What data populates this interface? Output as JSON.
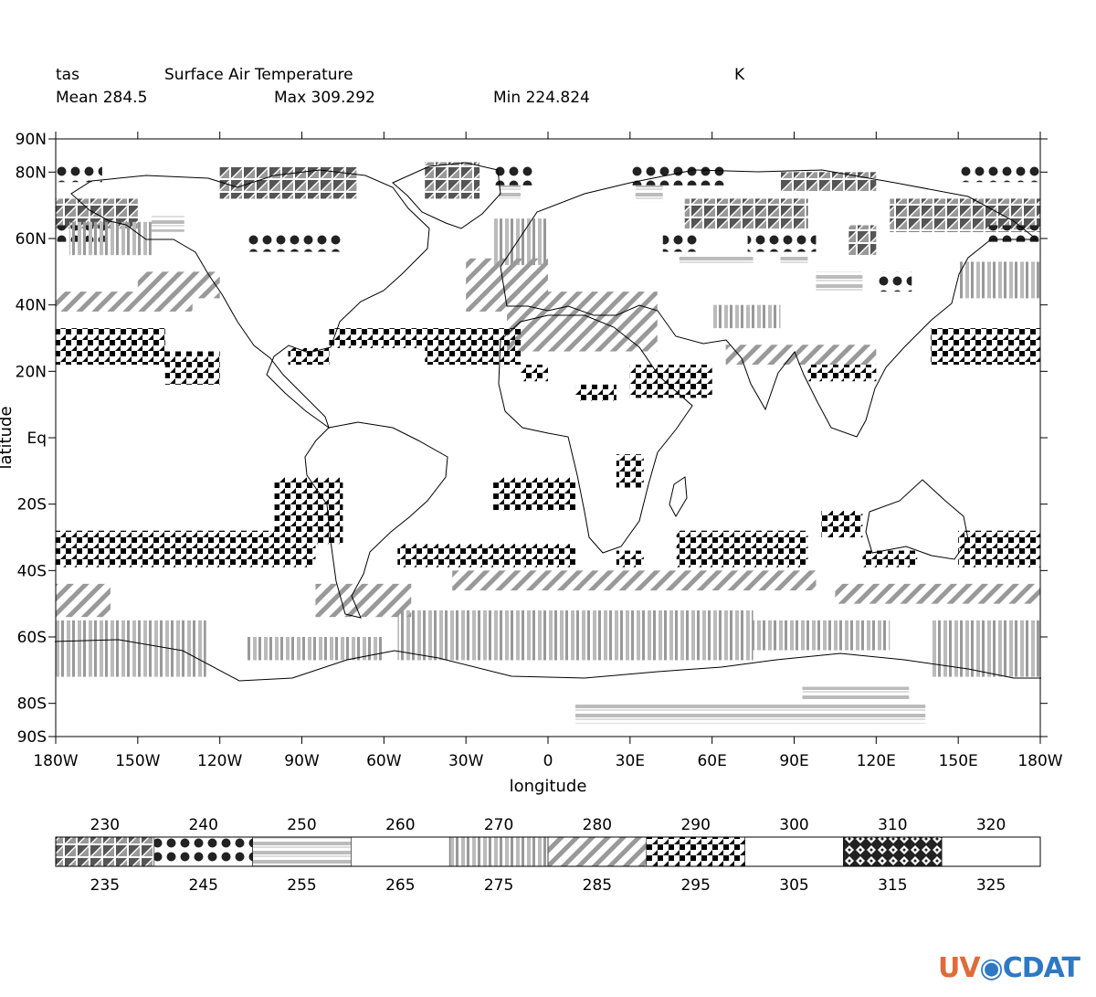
{
  "header": {
    "variable": "tas",
    "long_name": "Surface Air Temperature",
    "units": "K",
    "mean_label": "Mean 284.5",
    "max_label": "Max 309.292",
    "min_label": "Min 224.824"
  },
  "logo": {
    "part1": "UV",
    "part2": "CDAT",
    "globe_icon": "globe-icon"
  },
  "chart_data": {
    "type": "heatmap",
    "title": "Surface Air Temperature",
    "xlabel": "longitude",
    "ylabel": "latitude",
    "xlim": [
      -180,
      180
    ],
    "ylim": [
      -90,
      90
    ],
    "x_ticks": [
      {
        "v": -180,
        "label": "180W"
      },
      {
        "v": -150,
        "label": "150W"
      },
      {
        "v": -120,
        "label": "120W"
      },
      {
        "v": -90,
        "label": "90W"
      },
      {
        "v": -60,
        "label": "60W"
      },
      {
        "v": -30,
        "label": "30W"
      },
      {
        "v": 0,
        "label": "0"
      },
      {
        "v": 30,
        "label": "30E"
      },
      {
        "v": 60,
        "label": "60E"
      },
      {
        "v": 90,
        "label": "90E"
      },
      {
        "v": 120,
        "label": "120E"
      },
      {
        "v": 150,
        "label": "150E"
      },
      {
        "v": 180,
        "label": "180W"
      }
    ],
    "y_ticks": [
      {
        "v": 90,
        "label": "90N"
      },
      {
        "v": 80,
        "label": "80N"
      },
      {
        "v": 60,
        "label": "60N"
      },
      {
        "v": 40,
        "label": "40N"
      },
      {
        "v": 20,
        "label": "20N"
      },
      {
        "v": 0,
        "label": "Eq"
      },
      {
        "v": -20,
        "label": "20S"
      },
      {
        "v": -40,
        "label": "40S"
      },
      {
        "v": -60,
        "label": "60S"
      },
      {
        "v": -80,
        "label": "80S"
      },
      {
        "v": -90,
        "label": "90S"
      }
    ],
    "legend": {
      "top_labels": [
        "230",
        "240",
        "250",
        "260",
        "270",
        "280",
        "290",
        "300",
        "310",
        "320"
      ],
      "bottom_labels": [
        "235",
        "245",
        "255",
        "265",
        "275",
        "285",
        "295",
        "305",
        "315",
        "325"
      ],
      "bins": [
        {
          "range": [
            230,
            240
          ],
          "pattern": "triangles"
        },
        {
          "range": [
            240,
            250
          ],
          "pattern": "dots"
        },
        {
          "range": [
            250,
            260
          ],
          "pattern": "hlines"
        },
        {
          "range": [
            260,
            270
          ],
          "pattern": "none"
        },
        {
          "range": [
            270,
            280
          ],
          "pattern": "vlines"
        },
        {
          "range": [
            280,
            290
          ],
          "pattern": "diag"
        },
        {
          "range": [
            290,
            300
          ],
          "pattern": "checker"
        },
        {
          "range": [
            300,
            310
          ],
          "pattern": "none"
        },
        {
          "range": [
            310,
            320
          ],
          "pattern": "diamonds"
        },
        {
          "range": [
            320,
            330
          ],
          "pattern": "none"
        }
      ]
    },
    "regions": [
      {
        "bin": 0,
        "lon": [
          -180,
          -150
        ],
        "lat": [
          63,
          72
        ]
      },
      {
        "bin": 0,
        "lon": [
          -120,
          -70
        ],
        "lat": [
          72,
          82
        ]
      },
      {
        "bin": 0,
        "lon": [
          -45,
          -25
        ],
        "lat": [
          72,
          83
        ]
      },
      {
        "bin": 0,
        "lon": [
          50,
          95
        ],
        "lat": [
          63,
          72
        ]
      },
      {
        "bin": 0,
        "lon": [
          85,
          120
        ],
        "lat": [
          74,
          80
        ]
      },
      {
        "bin": 0,
        "lon": [
          110,
          120
        ],
        "lat": [
          55,
          64
        ]
      },
      {
        "bin": 0,
        "lon": [
          125,
          180
        ],
        "lat": [
          62,
          72
        ]
      },
      {
        "bin": 1,
        "lon": [
          -180,
          -163
        ],
        "lat": [
          77,
          83
        ]
      },
      {
        "bin": 1,
        "lon": [
          -180,
          -162
        ],
        "lat": [
          59,
          64
        ]
      },
      {
        "bin": 1,
        "lon": [
          -110,
          -75
        ],
        "lat": [
          56,
          61
        ]
      },
      {
        "bin": 1,
        "lon": [
          -20,
          -5
        ],
        "lat": [
          76,
          83
        ]
      },
      {
        "bin": 1,
        "lon": [
          30,
          65
        ],
        "lat": [
          76,
          83
        ]
      },
      {
        "bin": 1,
        "lon": [
          42,
          55
        ],
        "lat": [
          56,
          61
        ]
      },
      {
        "bin": 1,
        "lon": [
          73,
          98
        ],
        "lat": [
          56,
          61
        ]
      },
      {
        "bin": 1,
        "lon": [
          120,
          133
        ],
        "lat": [
          44,
          50
        ]
      },
      {
        "bin": 1,
        "lon": [
          150,
          180
        ],
        "lat": [
          77,
          83
        ]
      },
      {
        "bin": 1,
        "lon": [
          160,
          180
        ],
        "lat": [
          59,
          64
        ]
      },
      {
        "bin": 2,
        "lon": [
          -145,
          -133
        ],
        "lat": [
          62,
          67
        ]
      },
      {
        "bin": 2,
        "lon": [
          -18,
          -10
        ],
        "lat": [
          72,
          76
        ]
      },
      {
        "bin": 2,
        "lon": [
          32,
          42
        ],
        "lat": [
          71,
          76
        ]
      },
      {
        "bin": 2,
        "lon": [
          48,
          75
        ],
        "lat": [
          52,
          55
        ]
      },
      {
        "bin": 2,
        "lon": [
          85,
          95
        ],
        "lat": [
          52,
          55
        ]
      },
      {
        "bin": 2,
        "lon": [
          98,
          115
        ],
        "lat": [
          44,
          50
        ]
      },
      {
        "bin": 2,
        "lon": [
          10,
          138
        ],
        "lat": [
          -86,
          -80
        ]
      },
      {
        "bin": 2,
        "lon": [
          93,
          132
        ],
        "lat": [
          -79,
          -75
        ]
      },
      {
        "bin": 4,
        "lon": [
          -180,
          -125
        ],
        "lat": [
          -72,
          -55
        ]
      },
      {
        "bin": 4,
        "lon": [
          -110,
          -60
        ],
        "lat": [
          -67,
          -60
        ]
      },
      {
        "bin": 4,
        "lon": [
          -55,
          75
        ],
        "lat": [
          -67,
          -52
        ]
      },
      {
        "bin": 4,
        "lon": [
          75,
          125
        ],
        "lat": [
          -64,
          -55
        ]
      },
      {
        "bin": 4,
        "lon": [
          140,
          180
        ],
        "lat": [
          -72,
          -55
        ]
      },
      {
        "bin": 4,
        "lon": [
          -175,
          -145
        ],
        "lat": [
          55,
          65
        ]
      },
      {
        "bin": 4,
        "lon": [
          -20,
          0
        ],
        "lat": [
          52,
          66
        ]
      },
      {
        "bin": 4,
        "lon": [
          60,
          85
        ],
        "lat": [
          33,
          40
        ]
      },
      {
        "bin": 4,
        "lon": [
          150,
          180
        ],
        "lat": [
          42,
          53
        ]
      },
      {
        "bin": 5,
        "lon": [
          -180,
          -130
        ],
        "lat": [
          38,
          44
        ]
      },
      {
        "bin": 5,
        "lon": [
          -150,
          -120
        ],
        "lat": [
          42,
          50
        ]
      },
      {
        "bin": 5,
        "lon": [
          -30,
          0
        ],
        "lat": [
          38,
          54
        ]
      },
      {
        "bin": 5,
        "lon": [
          -15,
          40
        ],
        "lat": [
          26,
          44
        ]
      },
      {
        "bin": 5,
        "lon": [
          65,
          120
        ],
        "lat": [
          22,
          28
        ]
      },
      {
        "bin": 5,
        "lon": [
          -180,
          -160
        ],
        "lat": [
          -54,
          -44
        ]
      },
      {
        "bin": 5,
        "lon": [
          -85,
          -50
        ],
        "lat": [
          -54,
          -44
        ]
      },
      {
        "bin": 5,
        "lon": [
          -35,
          98
        ],
        "lat": [
          -46,
          -40
        ]
      },
      {
        "bin": 5,
        "lon": [
          105,
          180
        ],
        "lat": [
          -50,
          -44
        ]
      },
      {
        "bin": 6,
        "lon": [
          -180,
          -140
        ],
        "lat": [
          22,
          33
        ]
      },
      {
        "bin": 6,
        "lon": [
          -140,
          -120
        ],
        "lat": [
          16,
          26
        ]
      },
      {
        "bin": 6,
        "lon": [
          -95,
          -80
        ],
        "lat": [
          22,
          27
        ]
      },
      {
        "bin": 6,
        "lon": [
          -80,
          -40
        ],
        "lat": [
          27,
          33
        ]
      },
      {
        "bin": 6,
        "lon": [
          -45,
          -10
        ],
        "lat": [
          22,
          33
        ]
      },
      {
        "bin": 6,
        "lon": [
          -10,
          0
        ],
        "lat": [
          17,
          22
        ]
      },
      {
        "bin": 6,
        "lon": [
          30,
          60
        ],
        "lat": [
          12,
          22
        ]
      },
      {
        "bin": 6,
        "lon": [
          10,
          25
        ],
        "lat": [
          11,
          16
        ]
      },
      {
        "bin": 6,
        "lon": [
          95,
          120
        ],
        "lat": [
          17,
          22
        ]
      },
      {
        "bin": 6,
        "lon": [
          140,
          180
        ],
        "lat": [
          22,
          33
        ]
      },
      {
        "bin": 6,
        "lon": [
          -100,
          -75
        ],
        "lat": [
          -32,
          -12
        ]
      },
      {
        "bin": 6,
        "lon": [
          -20,
          10
        ],
        "lat": [
          -22,
          -12
        ]
      },
      {
        "bin": 6,
        "lon": [
          -180,
          -100
        ],
        "lat": [
          -39,
          -28
        ]
      },
      {
        "bin": 6,
        "lon": [
          -100,
          -85
        ],
        "lat": [
          -39,
          -32
        ]
      },
      {
        "bin": 6,
        "lon": [
          -55,
          10
        ],
        "lat": [
          -39,
          -32
        ]
      },
      {
        "bin": 6,
        "lon": [
          25,
          35
        ],
        "lat": [
          -39,
          -34
        ]
      },
      {
        "bin": 6,
        "lon": [
          47,
          95
        ],
        "lat": [
          -39,
          -28
        ]
      },
      {
        "bin": 6,
        "lon": [
          100,
          115
        ],
        "lat": [
          -30,
          -22
        ]
      },
      {
        "bin": 6,
        "lon": [
          115,
          135
        ],
        "lat": [
          -39,
          -34
        ]
      },
      {
        "bin": 6,
        "lon": [
          150,
          180
        ],
        "lat": [
          -39,
          -28
        ]
      },
      {
        "bin": 6,
        "lon": [
          25,
          35
        ],
        "lat": [
          -15,
          -5
        ]
      }
    ]
  }
}
